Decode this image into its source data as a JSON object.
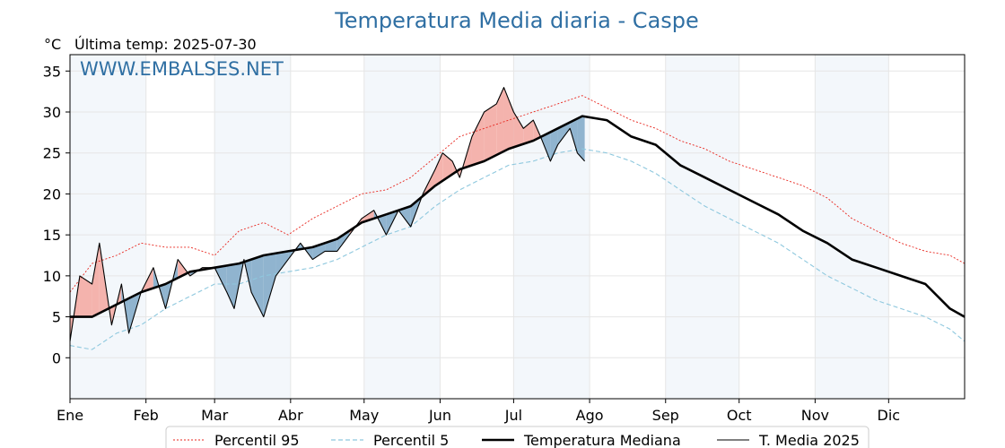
{
  "title": "Temperatura Media diaria - Caspe",
  "unit_label": "°C",
  "last_temp_label": "Última temp: 2025-07-30",
  "watermark": "WWW.EMBALSES.NET",
  "colors": {
    "title": "#2f6fa3",
    "p95": "#e8251d",
    "p5": "#8ec8de",
    "median": "#000000",
    "current": "#000000",
    "above_fill": "#f4b3ad",
    "below_fill": "#90b4cf",
    "alt_band": "#f3f7fb"
  },
  "legend": {
    "p95": "Percentil 95",
    "p5": "Percentil 5",
    "median": "Temperatura Mediana",
    "current": "T. Media 2025"
  },
  "chart_data": {
    "type": "line",
    "title": "Temperatura Media diaria - Caspe",
    "ylabel": "°C",
    "ylim": [
      -5,
      37
    ],
    "yticks": [
      0,
      5,
      10,
      15,
      20,
      25,
      30,
      35
    ],
    "x_domain": [
      1,
      366
    ],
    "month_ticks": [
      {
        "label": "Ene",
        "day": 1
      },
      {
        "label": "Feb",
        "day": 32
      },
      {
        "label": "Mar",
        "day": 60
      },
      {
        "label": "Abr",
        "day": 91
      },
      {
        "label": "May",
        "day": 121
      },
      {
        "label": "Jun",
        "day": 152
      },
      {
        "label": "Jul",
        "day": 182
      },
      {
        "label": "Ago",
        "day": 213
      },
      {
        "label": "Sep",
        "day": 244
      },
      {
        "label": "Oct",
        "day": 274
      },
      {
        "label": "Nov",
        "day": 305
      },
      {
        "label": "Dic",
        "day": 335
      }
    ],
    "x_unit": "day of year",
    "grid": true,
    "legend_position": "bottom",
    "series": [
      {
        "name": "Percentil 95",
        "style": "dotted",
        "x": [
          1,
          10,
          20,
          30,
          40,
          50,
          60,
          70,
          80,
          90,
          100,
          110,
          120,
          130,
          140,
          150,
          160,
          170,
          180,
          190,
          200,
          210,
          220,
          230,
          240,
          250,
          260,
          270,
          280,
          290,
          300,
          310,
          320,
          330,
          340,
          350,
          360,
          366
        ],
        "values": [
          8,
          11.5,
          12.5,
          14,
          13.5,
          13.5,
          12.5,
          15.5,
          16.5,
          15,
          17,
          18.5,
          20,
          20.5,
          22,
          24.5,
          27,
          28,
          29,
          30,
          31,
          32,
          30.5,
          29,
          28,
          26.5,
          25.5,
          24,
          23,
          22,
          21,
          19.5,
          17,
          15.5,
          14,
          13,
          12.5,
          11.5
        ]
      },
      {
        "name": "Percentil 5",
        "style": "dashed",
        "x": [
          1,
          10,
          20,
          30,
          40,
          50,
          60,
          70,
          80,
          90,
          100,
          110,
          120,
          130,
          140,
          150,
          160,
          170,
          180,
          190,
          200,
          210,
          220,
          230,
          240,
          250,
          260,
          270,
          280,
          290,
          300,
          310,
          320,
          330,
          340,
          350,
          360,
          366
        ],
        "values": [
          1.5,
          1,
          3,
          4,
          6,
          7.5,
          9,
          9,
          10,
          10.5,
          11,
          12,
          13.5,
          15,
          16,
          18.5,
          20.5,
          22,
          23.5,
          24,
          25,
          25.5,
          25,
          24,
          22.5,
          20.5,
          18.5,
          17,
          15.5,
          14,
          12,
          10,
          8.5,
          7,
          6,
          5,
          3.5,
          2
        ]
      },
      {
        "name": "Temperatura Mediana",
        "style": "thick",
        "x": [
          1,
          10,
          20,
          30,
          40,
          50,
          60,
          70,
          80,
          90,
          100,
          110,
          120,
          130,
          140,
          150,
          160,
          170,
          180,
          190,
          200,
          210,
          220,
          230,
          240,
          250,
          260,
          270,
          280,
          290,
          300,
          310,
          320,
          330,
          340,
          350,
          360,
          363,
          366
        ],
        "values": [
          5,
          5,
          6.5,
          8,
          9,
          10.5,
          11,
          11.5,
          12.5,
          13,
          13.5,
          14.5,
          16.5,
          17.5,
          18.5,
          21,
          23,
          24,
          25.5,
          26.5,
          28,
          29.5,
          29,
          27,
          26,
          23.5,
          22,
          20.5,
          19,
          17.5,
          15.5,
          14,
          12,
          11,
          10,
          9,
          6,
          5.5,
          5
        ]
      },
      {
        "name": "T. Media 2025",
        "style": "thin",
        "x": [
          1,
          5,
          10,
          13,
          18,
          22,
          25,
          30,
          35,
          40,
          45,
          50,
          55,
          60,
          65,
          68,
          72,
          75,
          80,
          85,
          90,
          95,
          100,
          105,
          110,
          115,
          120,
          125,
          130,
          135,
          140,
          145,
          150,
          153,
          157,
          160,
          165,
          170,
          175,
          178,
          182,
          186,
          190,
          193,
          197,
          200,
          205,
          208,
          211
        ],
        "values": [
          2,
          10,
          9,
          14,
          4,
          9,
          3,
          8,
          11,
          6,
          12,
          10,
          11,
          11,
          8,
          6,
          12,
          8,
          5,
          10,
          12,
          14,
          12,
          13,
          13,
          15,
          17,
          18,
          15,
          18,
          16,
          20,
          23,
          25,
          24,
          22,
          27,
          30,
          31,
          33,
          30,
          28,
          29,
          27,
          24,
          26,
          28,
          25,
          24
        ]
      }
    ]
  }
}
